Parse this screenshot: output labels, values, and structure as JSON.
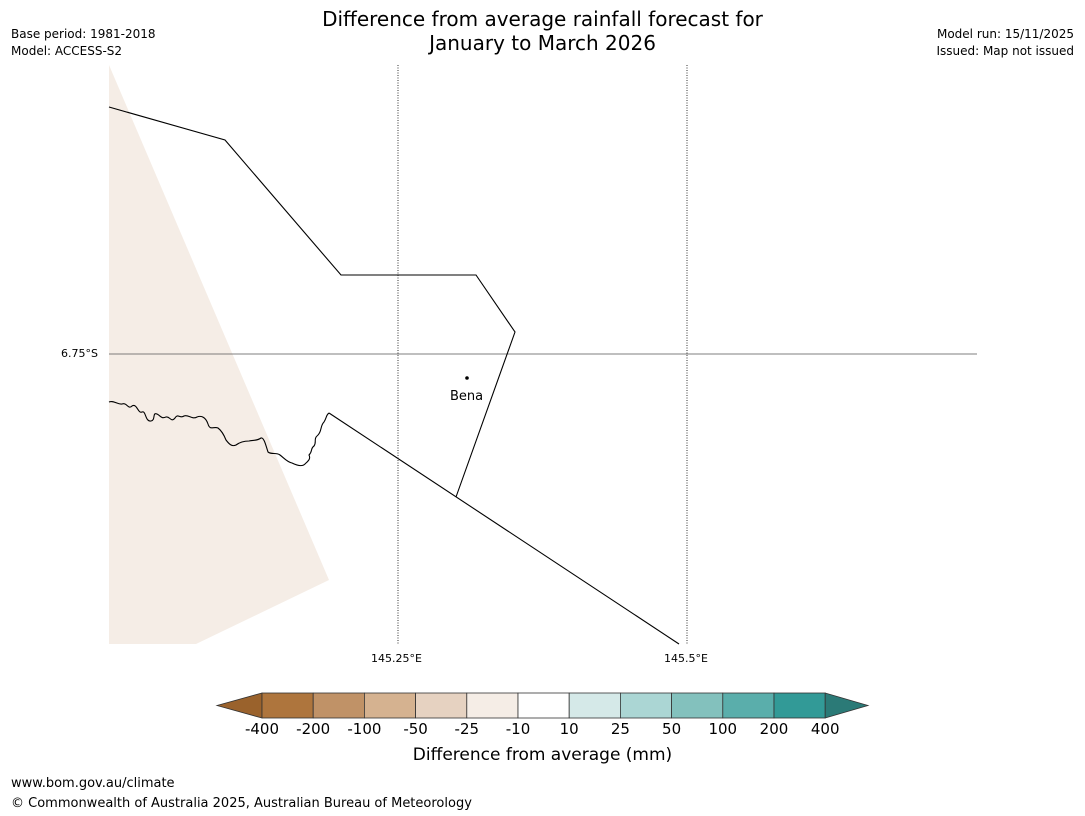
{
  "header": {
    "title_line1": "Difference from average rainfall forecast for",
    "title_line2": "January to March 2026",
    "base_period": "Base period: 1981-2018",
    "model": "Model: ACCESS-S2",
    "model_run": "Model run: 15/11/2025",
    "issued": "Issued: Map not issued"
  },
  "map": {
    "latitude_label": "6.75°S",
    "longitude_labels": [
      "145.25°E",
      "145.5°E"
    ],
    "place": {
      "name": "Bena"
    },
    "shade_color": "#f5ede6",
    "border_color": "#000000",
    "grid_color": "#555555"
  },
  "legend": {
    "title": "Difference from average (mm)",
    "tick_labels": [
      "-400",
      "-200",
      "-100",
      "-50",
      "-25",
      "-10",
      "10",
      "25",
      "50",
      "100",
      "200",
      "400"
    ],
    "colors": [
      "#9a622c",
      "#ae753d",
      "#c09267",
      "#d5b290",
      "#e6d2c1",
      "#f5ede6",
      "#ffffff",
      "#d5e9e8",
      "#abd6d4",
      "#83c1bd",
      "#5aaeab",
      "#329a97",
      "#2b7a77"
    ]
  },
  "footer": {
    "website": "www.bom.gov.au/climate",
    "copyright": "© Commonwealth of Australia 2025, Australian Bureau of Meteorology"
  }
}
